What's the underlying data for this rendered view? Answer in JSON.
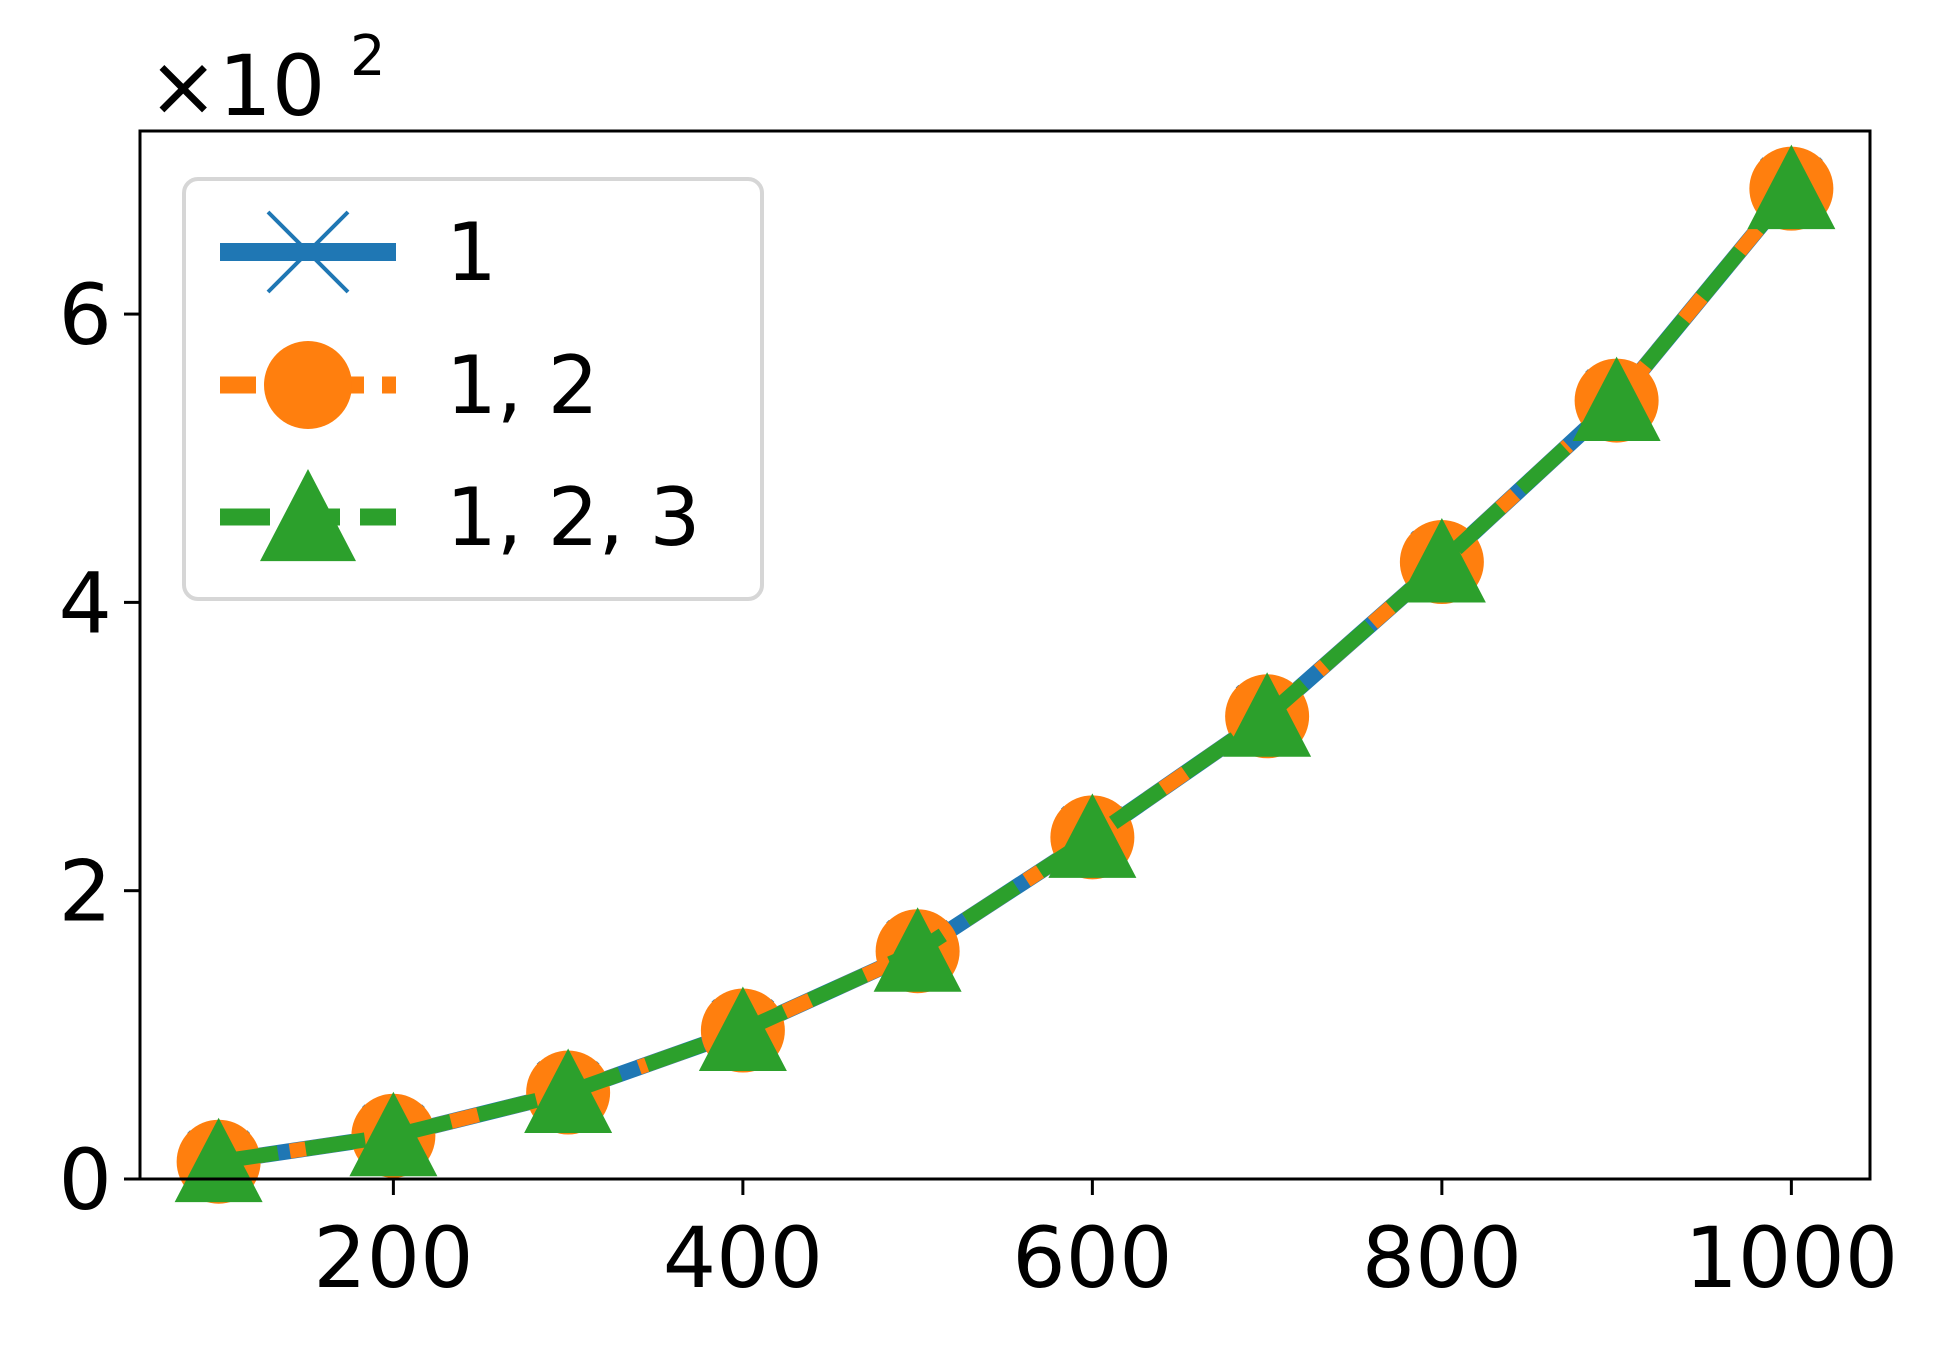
{
  "chart_data": {
    "type": "line",
    "x": [
      100,
      200,
      300,
      400,
      500,
      600,
      700,
      800,
      900,
      1000
    ],
    "series": [
      {
        "name": "1",
        "color": "#1f77b4",
        "marker": "x",
        "linestyle": "solid",
        "values": [
          12,
          30,
          60,
          103,
          158,
          237,
          321,
          428,
          540,
          687
        ]
      },
      {
        "name": "1, 2",
        "color": "#ff7f0e",
        "marker": "o",
        "linestyle": "dashed",
        "values": [
          12,
          30,
          60,
          103,
          158,
          237,
          321,
          428,
          540,
          687
        ]
      },
      {
        "name": "1, 2, 3",
        "color": "#2ca02c",
        "marker": "^",
        "linestyle": "dashed",
        "values": [
          12,
          30,
          60,
          103,
          158,
          237,
          321,
          428,
          540,
          687
        ]
      }
    ],
    "xticks": [
      200,
      400,
      600,
      800,
      1000
    ],
    "xtick_labels": [
      "200",
      "400",
      "600",
      "800",
      "1000"
    ],
    "yticks": [
      0,
      200,
      400,
      600
    ],
    "ytick_labels": [
      "0",
      "2",
      "4",
      "6"
    ],
    "y_offset_label": {
      "base": "×10",
      "exponent": "2"
    },
    "xlim": [
      55,
      1045
    ],
    "ylim": [
      0,
      727
    ],
    "legend_position": "top-left",
    "grid": false,
    "title": "",
    "xlabel": "",
    "ylabel": ""
  }
}
